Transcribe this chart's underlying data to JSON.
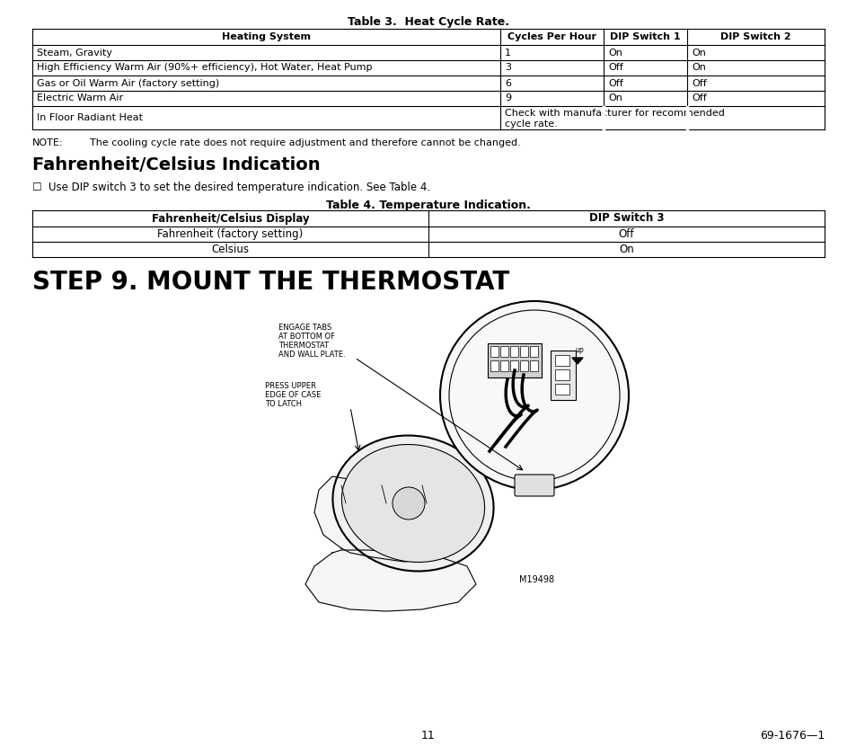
{
  "page_bg": "#ffffff",
  "table3_title": "Table 3.  Heat Cycle Rate.",
  "table3_headers": [
    "Heating System",
    "Cycles Per Hour",
    "DIP Switch 1",
    "DIP Switch 2"
  ],
  "table3_rows": [
    [
      "Steam, Gravity",
      "1",
      "On",
      "On"
    ],
    [
      "High Efficiency Warm Air (90%+ efficiency), Hot Water, Heat Pump",
      "3",
      "Off",
      "On"
    ],
    [
      "Gas or Oil Warm Air (factory setting)",
      "6",
      "Off",
      "Off"
    ],
    [
      "Electric Warm Air",
      "9",
      "On",
      "Off"
    ],
    [
      "In Floor Radiant Heat",
      "Check with manufacturer for recommended\ncycle rate.",
      "",
      ""
    ]
  ],
  "note_text_label": "NOTE:",
  "note_text_body": "The cooling cycle rate does not require adjustment and therefore cannot be changed.",
  "section_title": "Fahrenheit/Celsius Indication",
  "bullet_text": "☐  Use DIP switch 3 to set the desired temperature indication. See Table 4.",
  "table4_title": "Table 4. Temperature Indication.",
  "table4_headers": [
    "Fahrenheit/Celsius Display",
    "DIP Switch 3"
  ],
  "table4_rows": [
    [
      "Fahrenheit (factory setting)",
      "Off"
    ],
    [
      "Celsius",
      "On"
    ]
  ],
  "step_title": "STEP 9. MOUNT THE THERMOSTAT",
  "annot1_lines": [
    "ENGAGE TABS",
    "AT BOTTOM OF",
    "THERMOSTAT",
    "AND WALL PLATE."
  ],
  "annot2_lines": [
    "PRESS UPPER",
    "EDGE OF CASE",
    "TO LATCH"
  ],
  "img_label": "M19498",
  "footer_page": "11",
  "footer_right": "69-1676—1"
}
